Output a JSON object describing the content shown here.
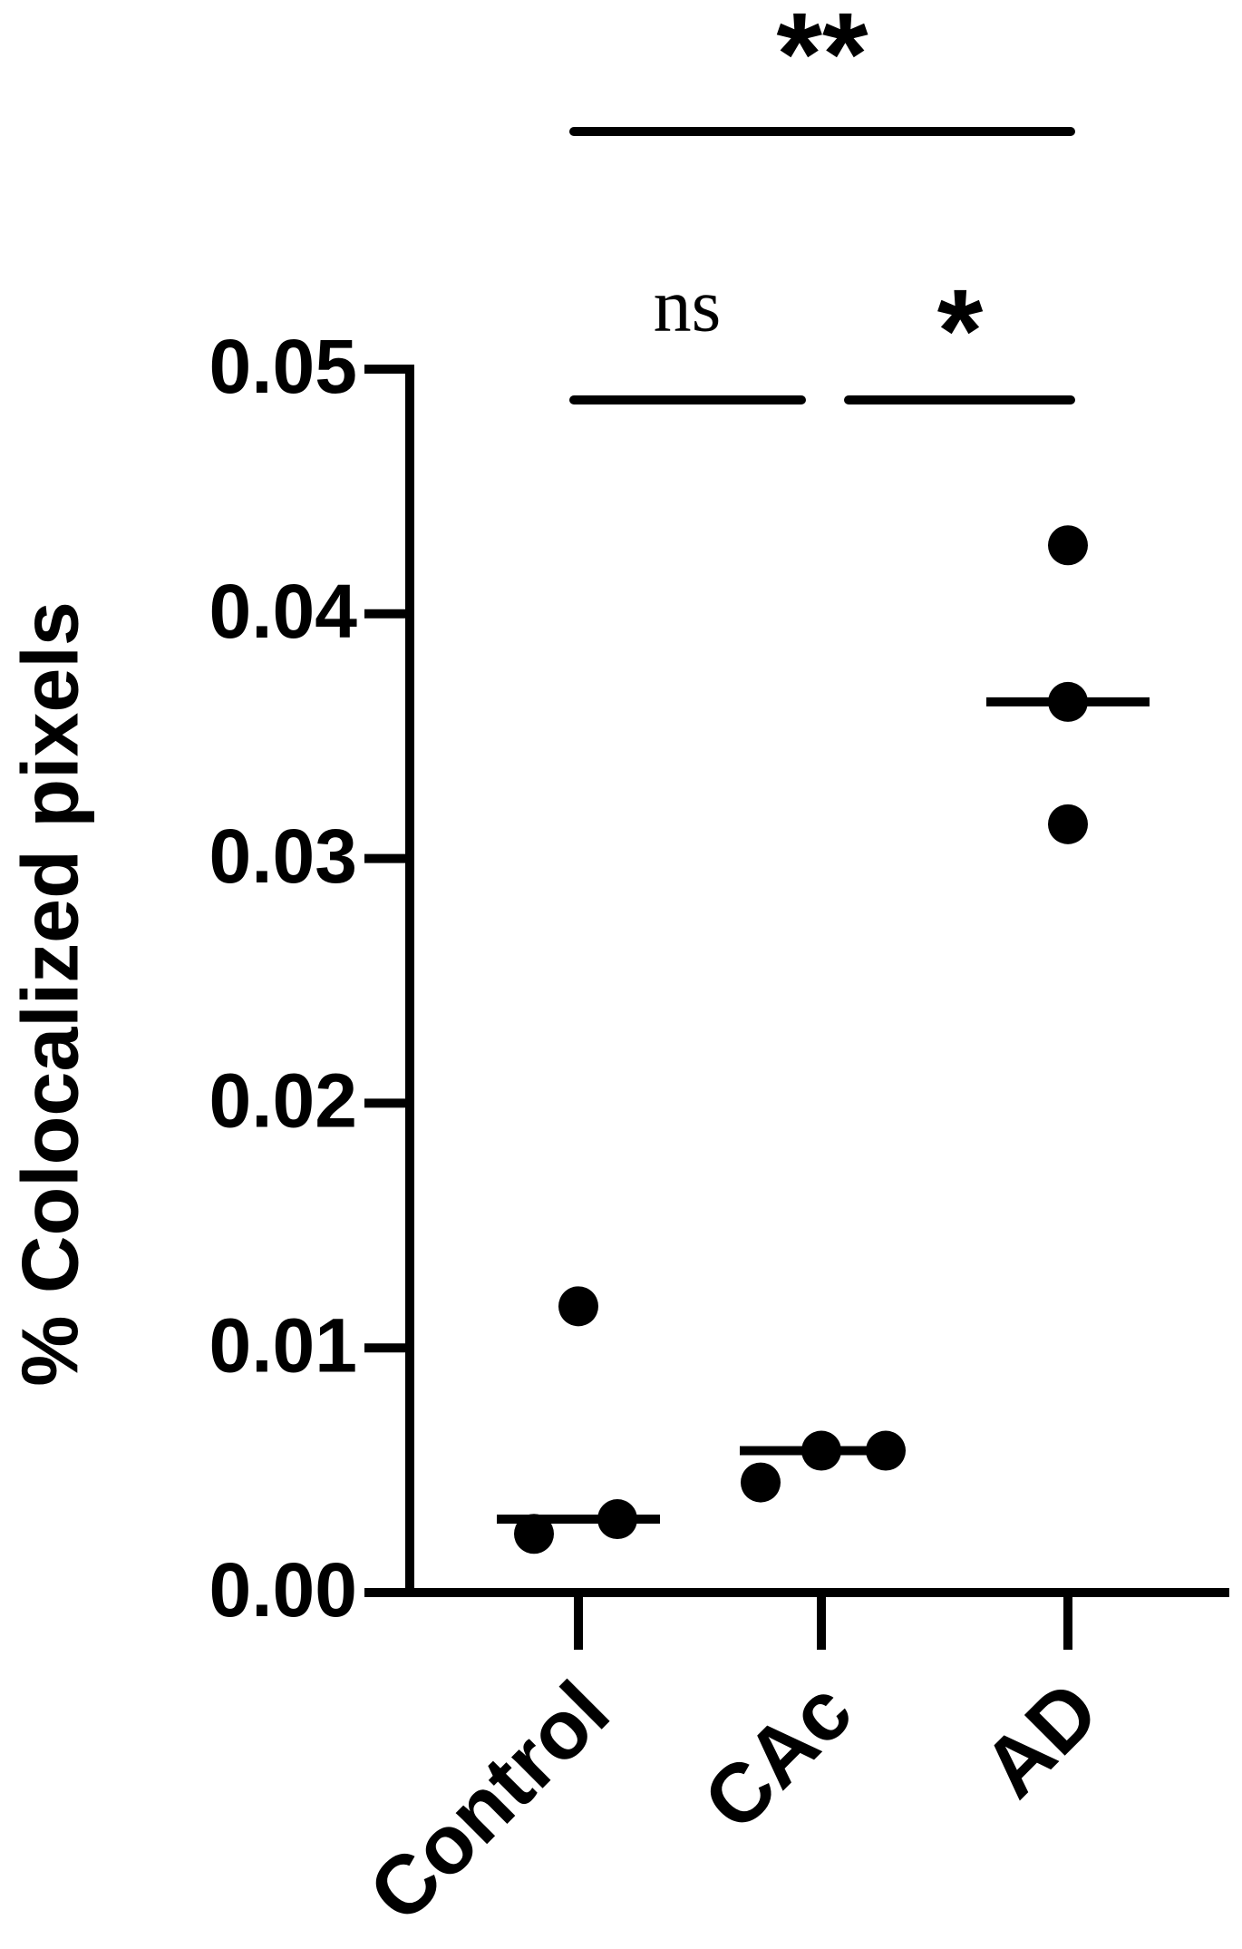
{
  "chart_data": {
    "type": "scatter",
    "y_label": "% Colocalized pixels",
    "categories": [
      "Control",
      "CAc",
      "AD"
    ],
    "values": [
      [
        0.0024,
        0.003,
        0.0117
      ],
      [
        0.0045,
        0.0058,
        0.0058
      ],
      [
        0.0428,
        0.0364,
        0.0314
      ]
    ],
    "medians": [
      0.003,
      0.0058,
      0.0364
    ],
    "color": "#000000",
    "ylim": [
      0,
      0.05
    ],
    "yticks": [
      {
        "value": 0,
        "label": "0.00"
      },
      0.01,
      0.02,
      0.03,
      0.04,
      0.05
    ],
    "annotations": [
      "**",
      "ns",
      "*"
    ]
  }
}
